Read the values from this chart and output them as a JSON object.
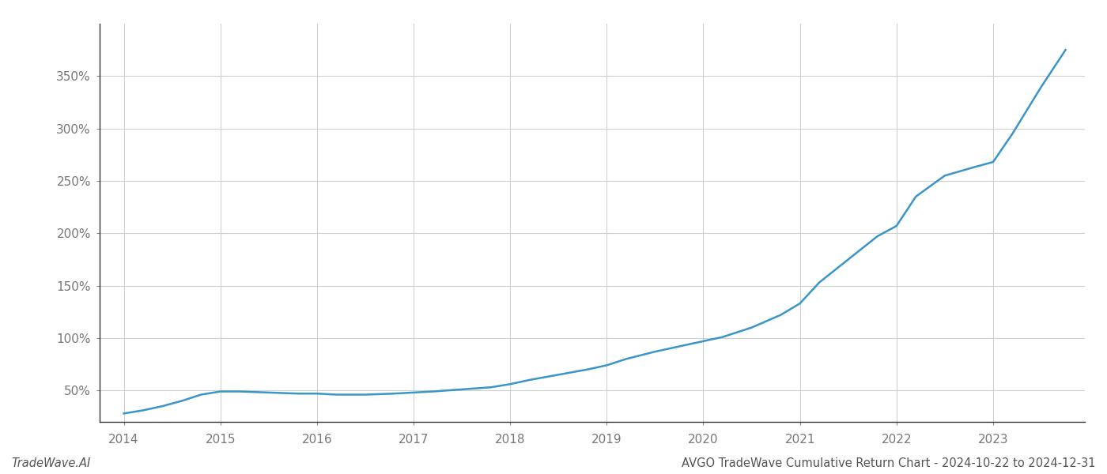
{
  "x_years": [
    2014.0,
    2014.2,
    2014.4,
    2014.6,
    2014.8,
    2015.0,
    2015.2,
    2015.5,
    2015.8,
    2016.0,
    2016.2,
    2016.5,
    2016.8,
    2017.0,
    2017.2,
    2017.5,
    2017.8,
    2018.0,
    2018.2,
    2018.5,
    2018.8,
    2019.0,
    2019.2,
    2019.5,
    2019.8,
    2020.0,
    2020.2,
    2020.5,
    2020.8,
    2021.0,
    2021.2,
    2021.5,
    2021.8,
    2022.0,
    2022.2,
    2022.5,
    2022.8,
    2023.0,
    2023.2,
    2023.5,
    2023.75
  ],
  "y_values": [
    28,
    31,
    35,
    40,
    46,
    49,
    49,
    48,
    47,
    47,
    46,
    46,
    47,
    48,
    49,
    51,
    53,
    56,
    60,
    65,
    70,
    74,
    80,
    87,
    93,
    97,
    101,
    110,
    122,
    133,
    153,
    175,
    197,
    207,
    235,
    255,
    263,
    268,
    295,
    340,
    375
  ],
  "line_color": "#3a95c8",
  "line_width": 1.8,
  "xlim": [
    2013.75,
    2023.95
  ],
  "ylim": [
    20,
    400
  ],
  "yticks": [
    50,
    100,
    150,
    200,
    250,
    300,
    350
  ],
  "xticks": [
    2014,
    2015,
    2016,
    2017,
    2018,
    2019,
    2020,
    2021,
    2022,
    2023
  ],
  "grid_color": "#d0d0d0",
  "grid_alpha": 1.0,
  "background_color": "#ffffff",
  "footer_left": "TradeWave.AI",
  "footer_right": "AVGO TradeWave Cumulative Return Chart - 2024-10-22 to 2024-12-31",
  "tick_label_color": "#777777",
  "footer_color": "#555555",
  "footer_fontsize": 10.5,
  "tick_fontsize": 11
}
